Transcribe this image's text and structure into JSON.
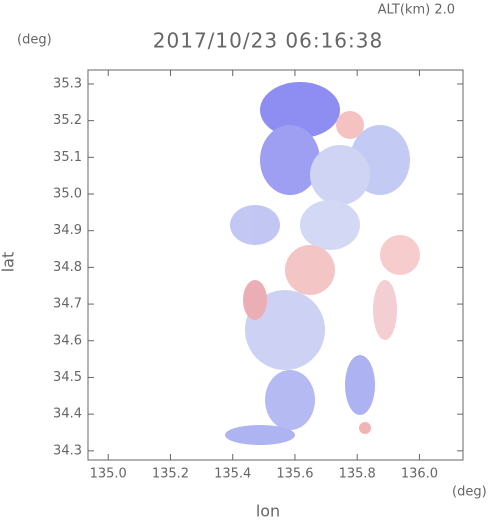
{
  "chart_data": {
    "type": "field",
    "title": "2017/10/23 06:16:38",
    "subtitle": "ALT(km) 2.0",
    "y_unit": "(deg)",
    "x_unit": "(deg)",
    "xlabel": "lon",
    "ylabel": "lat",
    "xlim": [
      134.935,
      136.14
    ],
    "ylim": [
      34.275,
      35.338
    ],
    "xticks": [
      {
        "value": 135.0,
        "label": "135.0"
      },
      135.2,
      135.4,
      135.6,
      135.8,
      {
        "value": 136.0,
        "label": "136.0"
      }
    ],
    "yticks": [
      34.3,
      34.4,
      34.5,
      34.6,
      34.7,
      34.8,
      34.9,
      {
        "value": 35.0,
        "label": "35.0"
      },
      35.1,
      35.2,
      35.3
    ]
  }
}
